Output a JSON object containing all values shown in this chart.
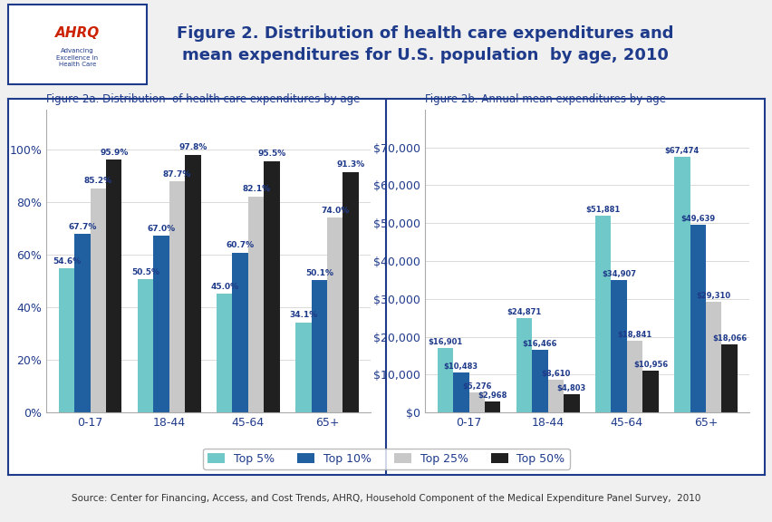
{
  "fig2a_title": "Figure 2a. Distribution  of health care expenditures by age",
  "fig2b_title": "Figure 2b. Annual mean expenditures by age",
  "main_title": "Figure 2. Distribution of health care expenditures and\nmean expenditures for U.S. population  by age, 2010",
  "source": "Source: Center for Financing, Access, and Cost Trends, AHRQ, Household Component of the Medical Expenditure Panel Survey,  2010",
  "categories": [
    "0-17",
    "18-44",
    "45-64",
    "65+"
  ],
  "legend_labels": [
    "Top 5%",
    "Top 10%",
    "Top 25%",
    "Top 50%"
  ],
  "colors": [
    "#70C8C8",
    "#2060A0",
    "#C8C8C8",
    "#202020"
  ],
  "fig2a_data": {
    "Top 5%": [
      54.6,
      50.5,
      45.0,
      34.1
    ],
    "Top 10%": [
      67.7,
      67.0,
      60.7,
      50.1
    ],
    "Top 25%": [
      85.2,
      87.7,
      82.1,
      74.0
    ],
    "Top 50%": [
      95.9,
      97.8,
      95.5,
      91.3
    ]
  },
  "fig2b_data": {
    "Top 5%": [
      16901,
      24871,
      51881,
      67474
    ],
    "Top 10%": [
      10483,
      16466,
      34907,
      49639
    ],
    "Top 25%": [
      5276,
      8610,
      18841,
      29310
    ],
    "Top 50%": [
      2968,
      4803,
      10956,
      18066
    ]
  },
  "fig2a_labels": {
    "Top 5%": [
      "54.6%",
      "50.5%",
      "45.0%",
      "34.1%"
    ],
    "Top 10%": [
      "67.7%",
      "67.0%",
      "60.7%",
      "50.1%"
    ],
    "Top 25%": [
      "85.2%",
      "87.7%",
      "82.1%",
      "74.0%"
    ],
    "Top 50%": [
      "95.9%",
      "97.8%",
      "95.5%",
      "91.3%"
    ]
  },
  "fig2b_labels": {
    "Top 5%": [
      "$16,901",
      "$24,871",
      "$51,881",
      "$67,474"
    ],
    "Top 10%": [
      "$10,483",
      "$16,466",
      "$34,907",
      "$49,639"
    ],
    "Top 25%": [
      "$5,276",
      "$8,610",
      "$18,841",
      "$29,310"
    ],
    "Top 50%": [
      "$2,968",
      "$4,803",
      "$10,956",
      "$18,066"
    ]
  },
  "border_color": "#1E3A8A",
  "title_color": "#1E3A8A",
  "label_color": "#1E3A8A"
}
